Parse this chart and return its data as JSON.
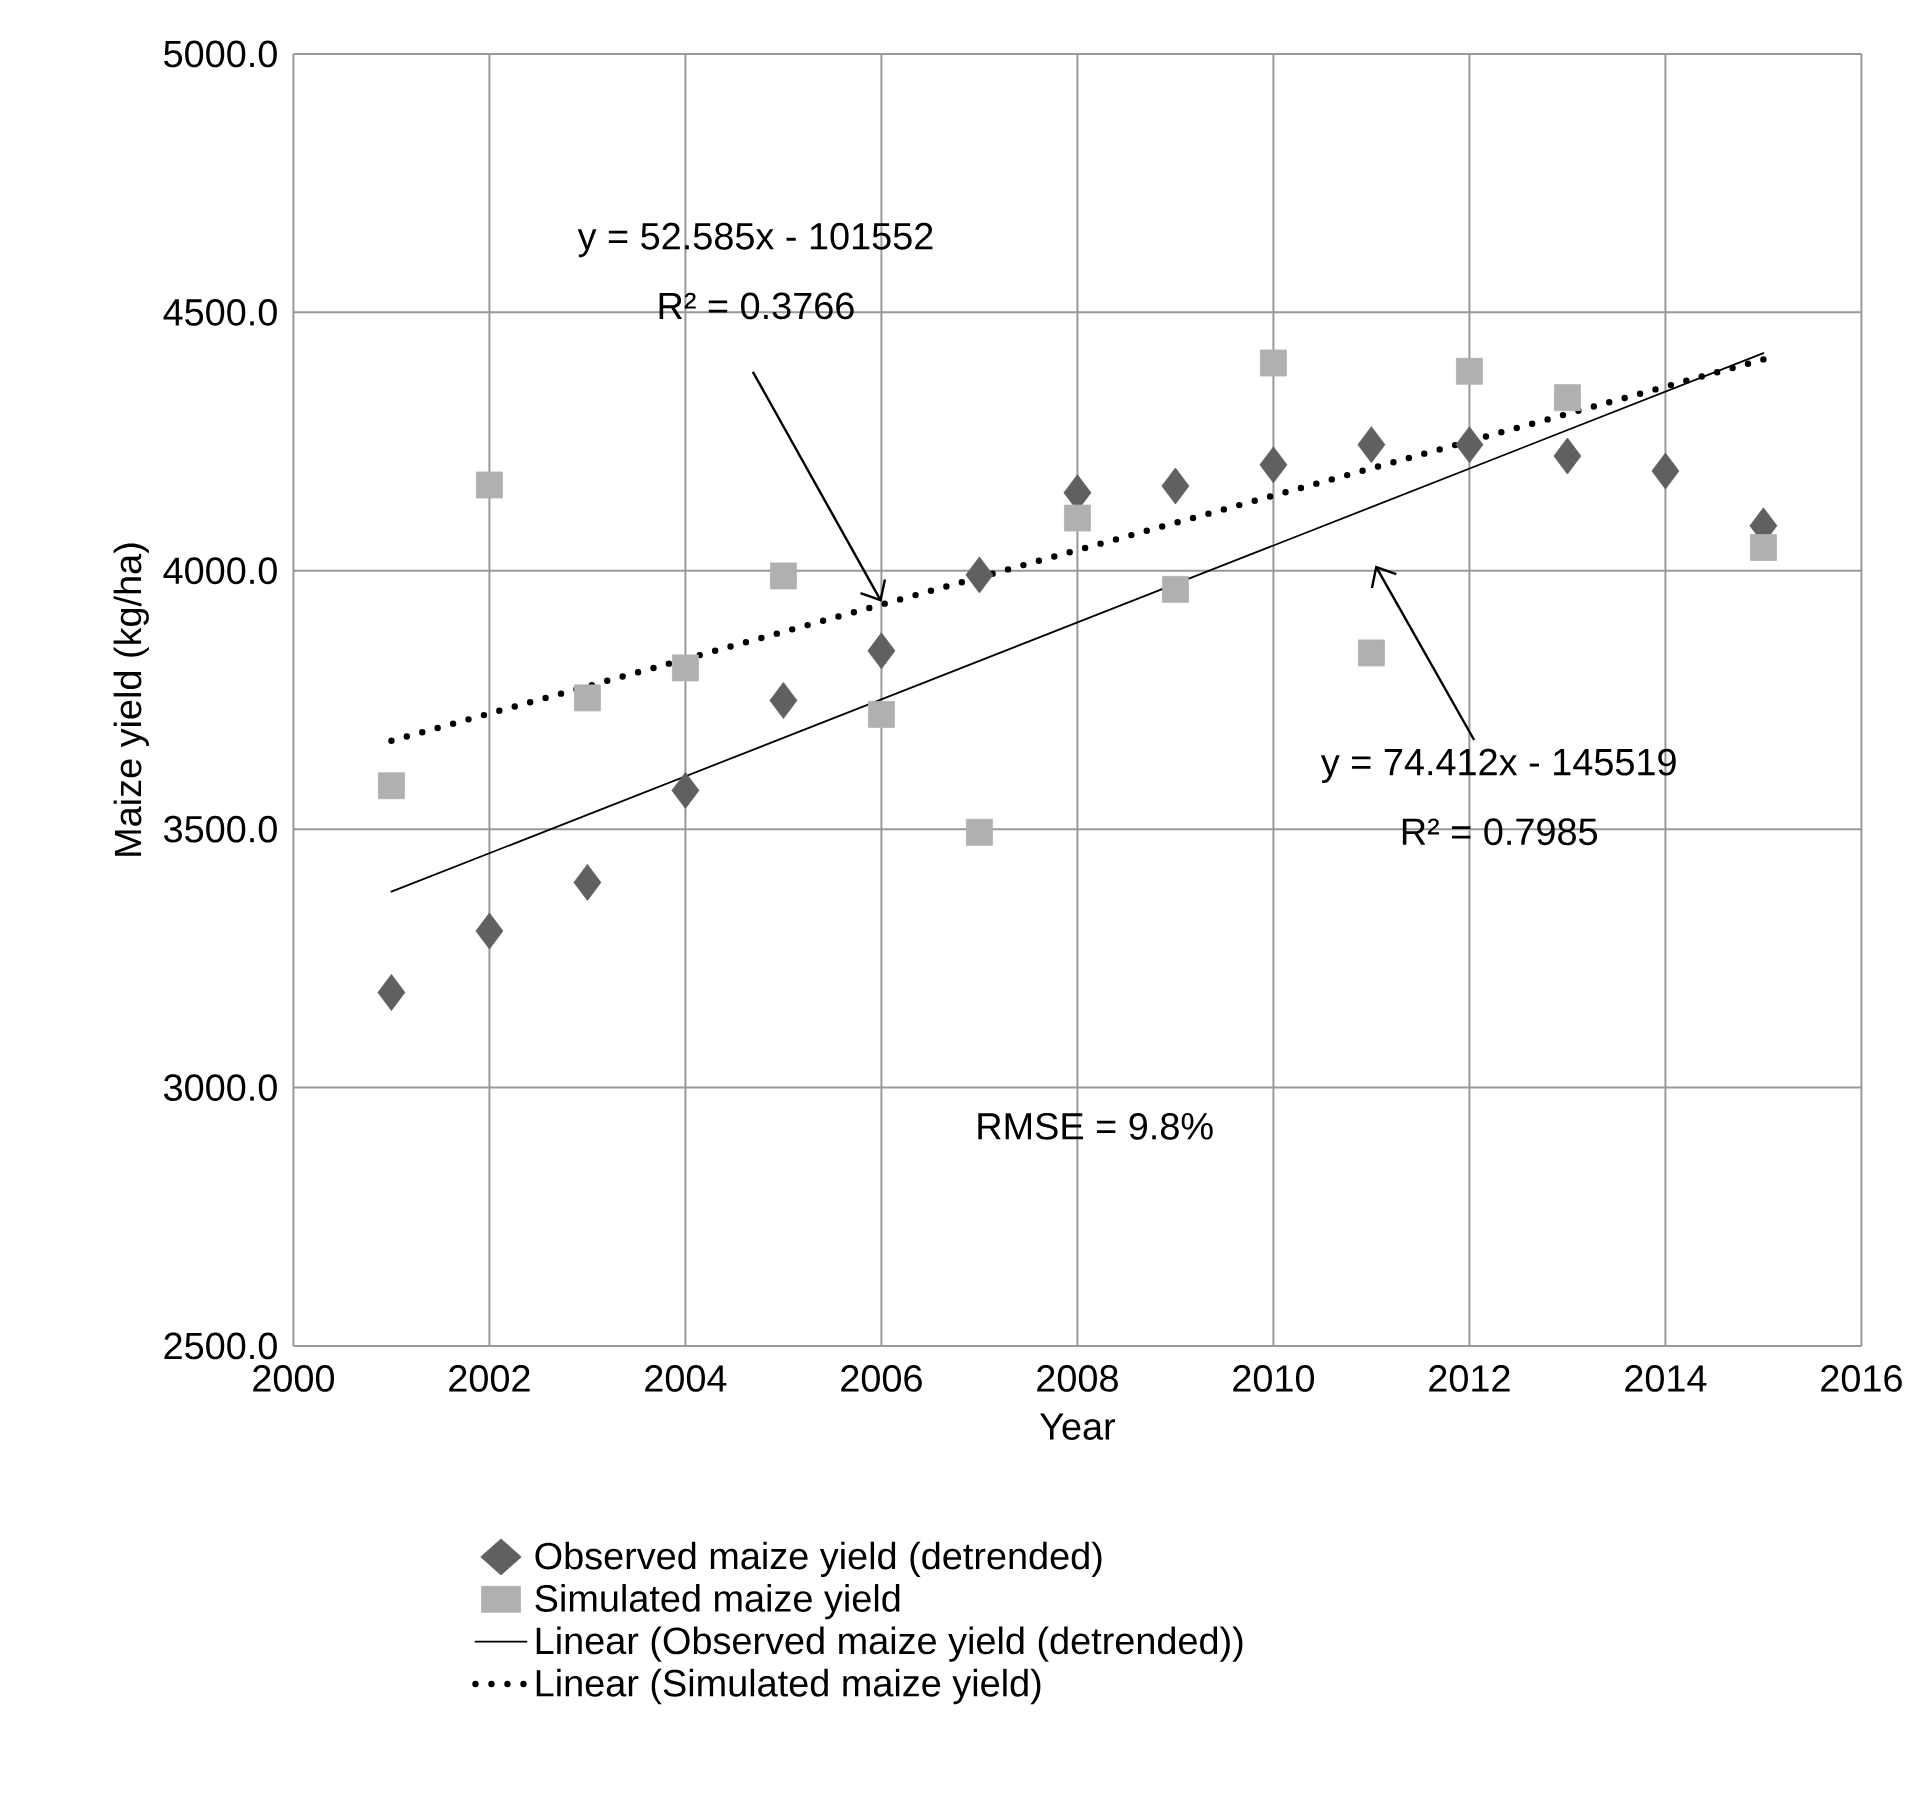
{
  "chart_data": {
    "type": "scatter",
    "xlabel": "Year",
    "ylabel": "Maize yield (kg/ha)",
    "xlim": [
      2000,
      2016
    ],
    "xticks": [
      2000,
      2002,
      2004,
      2006,
      2008,
      2010,
      2012,
      2014,
      2016
    ],
    "ylim": [
      2500,
      5000
    ],
    "yticks": [
      {
        "value": 2500,
        "label": "2500.0"
      },
      {
        "value": 3000,
        "label": "3000.0"
      },
      {
        "value": 3500,
        "label": "3500.0"
      },
      {
        "value": 4000,
        "label": "4000.0"
      },
      {
        "value": 4500,
        "label": "4500.0"
      },
      {
        "value": 5000,
        "label": "5000.0"
      }
    ],
    "grid": true,
    "legend": "bottom",
    "series": [
      {
        "name": "Observed maize yield (detrended)",
        "marker": "diamond",
        "color": "#606060",
        "x": [
          2001,
          2002,
          2003,
          2004,
          2005,
          2006,
          2007,
          2008,
          2009,
          2010,
          2011,
          2012,
          2013,
          2014,
          2015
        ],
        "values": [
          3184,
          3303,
          3397,
          3575,
          3749,
          3845,
          3992,
          4151,
          4164,
          4205,
          4244,
          4244,
          4222,
          4193,
          4087
        ]
      },
      {
        "name": "Simulated maize yield",
        "marker": "square",
        "color": "#b0b0b0",
        "x": [
          2001,
          2002,
          2003,
          2004,
          2005,
          2006,
          2007,
          2008,
          2009,
          2010,
          2011,
          2012,
          2013,
          2015
        ],
        "values": [
          3584,
          4166,
          3754,
          3812,
          3990,
          3722,
          3494,
          4102,
          3964,
          4402,
          3841,
          4386,
          4335,
          4045
        ]
      },
      {
        "name": "Linear (Observed maize yield (detrended))",
        "type": "line",
        "line_style": "solid",
        "color": "#000000",
        "x": [
          2001,
          2015
        ],
        "values": [
          3379,
          4421
        ]
      },
      {
        "name": "Linear (Simulated maize yield)",
        "type": "line",
        "line_style": "dotted",
        "color": "#000000",
        "x": [
          2001,
          2015
        ],
        "values": [
          3671,
          4409
        ]
      }
    ],
    "annotations": [
      "y = 52.585x - 101552",
      "R² = 0.3766",
      "y = 74.412x - 145519",
      "R² = 0.7985",
      "RMSE = 9.8%"
    ]
  }
}
